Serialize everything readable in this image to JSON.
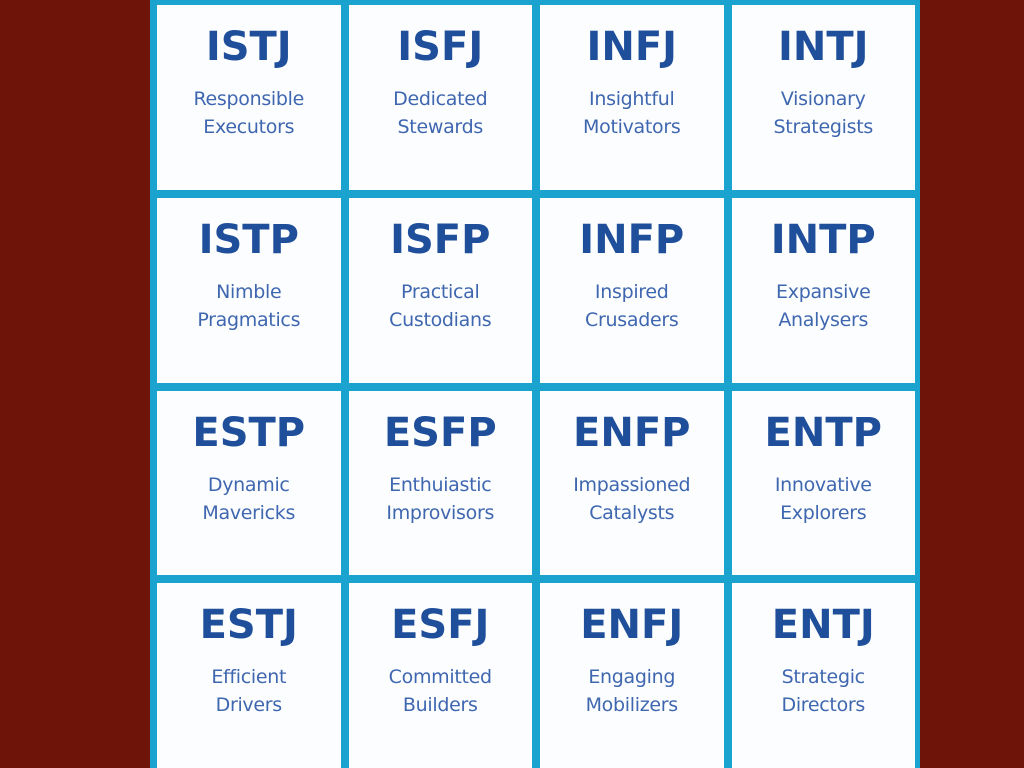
{
  "grid": {
    "rows": [
      {
        "cells": [
          {
            "code": "ISTJ",
            "line1": "Responsible",
            "line2": "Executors"
          },
          {
            "code": "ISFJ",
            "line1": "Dedicated",
            "line2": "Stewards"
          },
          {
            "code": "INFJ",
            "line1": "Insightful",
            "line2": "Motivators"
          },
          {
            "code": "INTJ",
            "line1": "Visionary",
            "line2": "Strategists"
          }
        ]
      },
      {
        "cells": [
          {
            "code": "ISTP",
            "line1": "Nimble",
            "line2": "Pragmatics"
          },
          {
            "code": "ISFP",
            "line1": "Practical",
            "line2": "Custodians"
          },
          {
            "code": "INFP",
            "line1": "Inspired",
            "line2": "Crusaders"
          },
          {
            "code": "INTP",
            "line1": "Expansive",
            "line2": "Analysers"
          }
        ]
      },
      {
        "cells": [
          {
            "code": "ESTP",
            "line1": "Dynamic",
            "line2": "Mavericks"
          },
          {
            "code": "ESFP",
            "line1": "Enthuiastic",
            "line2": "Improvisors"
          },
          {
            "code": "ENFP",
            "line1": "Impassioned",
            "line2": "Catalysts"
          },
          {
            "code": "ENTP",
            "line1": "Innovative",
            "line2": "Explorers"
          }
        ]
      },
      {
        "cells": [
          {
            "code": "ESTJ",
            "line1": "Efficient",
            "line2": "Drivers"
          },
          {
            "code": "ESFJ",
            "line1": "Committed",
            "line2": "Builders"
          },
          {
            "code": "ENFJ",
            "line1": "Engaging",
            "line2": "Mobilizers"
          },
          {
            "code": "ENTJ",
            "line1": "Strategic",
            "line2": "Directors"
          }
        ]
      }
    ]
  },
  "colors": {
    "background": "#6e1408",
    "grid_border": "#1aa3cf",
    "cell_background": "#fcfdfe",
    "code_text": "#1f4f9a",
    "desc_text": "#3f67b0"
  }
}
